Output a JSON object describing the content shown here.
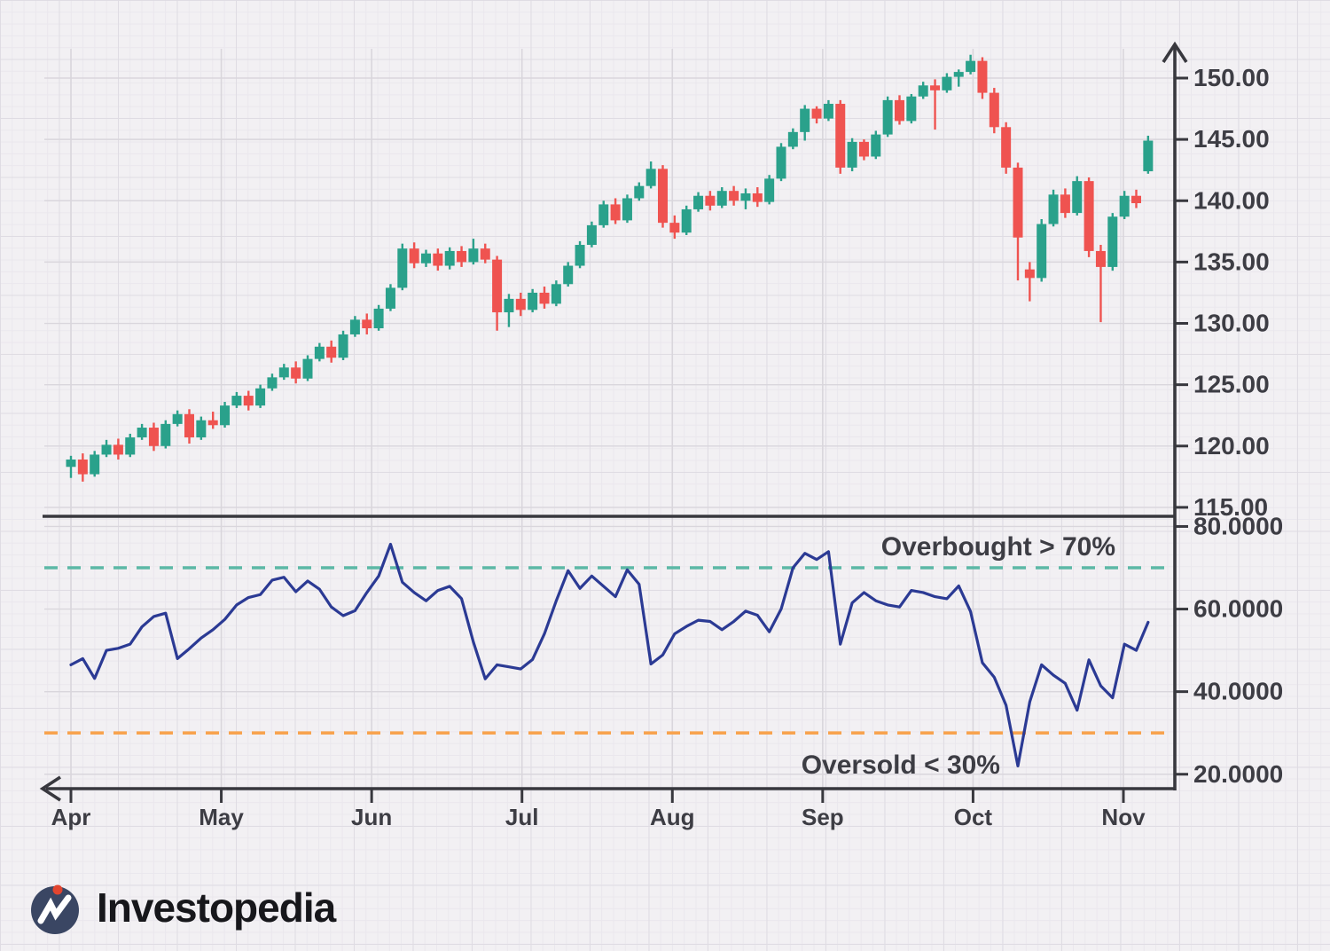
{
  "branding": {
    "logo_text": "Investopedia",
    "logo_circle_color": "#3a4663",
    "logo_dot_color": "#e2452f",
    "logo_mark_color": "#ffffff"
  },
  "chart_data": {
    "type": "candlestick",
    "title": "",
    "description": "Daily price candlesticks (top panel) with RSI oscillator (bottom panel), overbought/oversold bands",
    "x_axis": {
      "tick_labels": [
        "Apr",
        "May",
        "Jun",
        "Jul",
        "Aug",
        "Sep",
        "Oct",
        "Nov"
      ]
    },
    "price_panel": {
      "ylim": [
        113.5,
        152.5
      ],
      "grid": true,
      "up_color": "#2aa18b",
      "down_color": "#ef5350",
      "ticks": [
        {
          "label": "150.00",
          "value": 150
        },
        {
          "label": "145.00",
          "value": 145
        },
        {
          "label": "140.00",
          "value": 140
        },
        {
          "label": "135.00",
          "value": 135
        },
        {
          "label": "130.00",
          "value": 130
        },
        {
          "label": "125.00",
          "value": 125
        },
        {
          "label": "120.00",
          "value": 120
        },
        {
          "label": "115.00",
          "value": 115
        }
      ],
      "candles_ohlc": [
        [
          118.3,
          119.2,
          117.4,
          118.9
        ],
        [
          118.9,
          119.4,
          117.1,
          117.7
        ],
        [
          117.7,
          119.6,
          117.5,
          119.3
        ],
        [
          119.3,
          120.5,
          119.1,
          120.1
        ],
        [
          120.1,
          120.6,
          118.9,
          119.3
        ],
        [
          119.3,
          121.0,
          119.1,
          120.7
        ],
        [
          120.7,
          121.8,
          120.5,
          121.5
        ],
        [
          121.5,
          121.9,
          119.6,
          120.0
        ],
        [
          120.0,
          122.1,
          119.8,
          121.8
        ],
        [
          121.8,
          122.9,
          121.6,
          122.6
        ],
        [
          122.6,
          123.0,
          120.2,
          120.7
        ],
        [
          120.7,
          122.4,
          120.5,
          122.1
        ],
        [
          122.1,
          122.8,
          121.4,
          121.7
        ],
        [
          121.7,
          123.6,
          121.5,
          123.3
        ],
        [
          123.3,
          124.4,
          123.1,
          124.1
        ],
        [
          124.1,
          124.5,
          122.9,
          123.3
        ],
        [
          123.3,
          125.0,
          123.1,
          124.7
        ],
        [
          124.7,
          125.9,
          124.5,
          125.6
        ],
        [
          125.6,
          126.7,
          125.4,
          126.4
        ],
        [
          126.4,
          126.9,
          125.1,
          125.5
        ],
        [
          125.5,
          127.4,
          125.3,
          127.1
        ],
        [
          127.1,
          128.4,
          126.9,
          128.1
        ],
        [
          128.1,
          128.6,
          126.8,
          127.2
        ],
        [
          127.2,
          129.4,
          127.0,
          129.1
        ],
        [
          129.1,
          130.6,
          128.9,
          130.3
        ],
        [
          130.3,
          130.8,
          129.1,
          129.6
        ],
        [
          129.6,
          131.5,
          129.4,
          131.2
        ],
        [
          131.2,
          133.2,
          131.0,
          132.9
        ],
        [
          132.9,
          136.5,
          132.7,
          136.1
        ],
        [
          136.1,
          136.6,
          134.5,
          134.9
        ],
        [
          134.9,
          136.0,
          134.6,
          135.7
        ],
        [
          135.7,
          136.1,
          134.3,
          134.7
        ],
        [
          134.7,
          136.2,
          134.4,
          135.9
        ],
        [
          135.9,
          136.3,
          134.6,
          135.0
        ],
        [
          135.0,
          136.9,
          134.8,
          136.1
        ],
        [
          136.1,
          136.5,
          134.9,
          135.2
        ],
        [
          135.2,
          135.5,
          129.4,
          130.9
        ],
        [
          130.9,
          132.4,
          129.7,
          132.0
        ],
        [
          132.0,
          132.5,
          130.6,
          131.1
        ],
        [
          131.1,
          132.8,
          130.9,
          132.5
        ],
        [
          132.5,
          133.0,
          131.2,
          131.6
        ],
        [
          131.6,
          133.5,
          131.4,
          133.2
        ],
        [
          133.2,
          135.0,
          133.0,
          134.7
        ],
        [
          134.7,
          136.7,
          134.5,
          136.4
        ],
        [
          136.4,
          138.3,
          136.2,
          138.0
        ],
        [
          138.0,
          140.0,
          137.8,
          139.7
        ],
        [
          139.7,
          140.2,
          138.1,
          138.4
        ],
        [
          138.4,
          140.5,
          138.2,
          140.2
        ],
        [
          140.2,
          141.5,
          140.0,
          141.2
        ],
        [
          141.2,
          143.2,
          141.0,
          142.6
        ],
        [
          142.6,
          142.9,
          137.8,
          138.2
        ],
        [
          138.2,
          138.8,
          136.9,
          137.4
        ],
        [
          137.4,
          139.6,
          137.2,
          139.3
        ],
        [
          139.3,
          140.7,
          139.1,
          140.4
        ],
        [
          140.4,
          140.8,
          139.2,
          139.6
        ],
        [
          139.6,
          141.1,
          139.4,
          140.8
        ],
        [
          140.8,
          141.2,
          139.6,
          140.0
        ],
        [
          140.0,
          141.0,
          139.3,
          140.6
        ],
        [
          140.6,
          141.1,
          139.5,
          139.9
        ],
        [
          139.9,
          142.1,
          139.7,
          141.8
        ],
        [
          141.8,
          144.7,
          141.6,
          144.4
        ],
        [
          144.4,
          145.9,
          144.2,
          145.6
        ],
        [
          145.6,
          147.8,
          144.9,
          147.5
        ],
        [
          147.5,
          147.7,
          146.3,
          146.7
        ],
        [
          146.7,
          148.2,
          146.5,
          147.9
        ],
        [
          147.9,
          148.2,
          142.2,
          142.7
        ],
        [
          142.7,
          145.1,
          142.4,
          144.8
        ],
        [
          144.8,
          145.0,
          143.3,
          143.6
        ],
        [
          143.6,
          145.7,
          143.4,
          145.4
        ],
        [
          145.4,
          148.5,
          145.2,
          148.2
        ],
        [
          148.2,
          148.6,
          146.2,
          146.5
        ],
        [
          146.5,
          148.7,
          146.3,
          148.5
        ],
        [
          148.5,
          149.7,
          148.3,
          149.4
        ],
        [
          149.4,
          149.9,
          145.8,
          149.0
        ],
        [
          149.0,
          150.4,
          148.8,
          150.1
        ],
        [
          150.1,
          150.7,
          149.3,
          150.5
        ],
        [
          150.5,
          151.9,
          150.3,
          151.4
        ],
        [
          151.4,
          151.7,
          148.3,
          148.8
        ],
        [
          148.8,
          149.2,
          145.5,
          146.0
        ],
        [
          146.0,
          146.4,
          142.2,
          142.7
        ],
        [
          142.7,
          143.1,
          133.5,
          137.0
        ],
        [
          134.4,
          135.0,
          131.8,
          133.7
        ],
        [
          133.7,
          138.5,
          133.4,
          138.1
        ],
        [
          138.1,
          140.9,
          137.9,
          140.5
        ],
        [
          140.5,
          141.0,
          138.6,
          139.0
        ],
        [
          139.0,
          142.0,
          138.8,
          141.6
        ],
        [
          141.6,
          141.9,
          135.4,
          135.9
        ],
        [
          135.9,
          136.4,
          130.1,
          134.6
        ],
        [
          134.6,
          139.0,
          134.3,
          138.7
        ],
        [
          138.7,
          140.8,
          138.5,
          140.4
        ],
        [
          140.4,
          140.9,
          139.4,
          139.8
        ],
        [
          142.4,
          145.3,
          142.2,
          144.9
        ]
      ]
    },
    "rsi_panel": {
      "ylim": [
        18,
        82
      ],
      "grid": true,
      "line_color": "#2b3a94",
      "ticks": [
        {
          "label": "80.0000",
          "value": 80
        },
        {
          "label": "60.0000",
          "value": 60
        },
        {
          "label": "40.0000",
          "value": 40
        },
        {
          "label": "20.0000",
          "value": 20
        }
      ],
      "overbought": {
        "level": 70,
        "label": "Overbought > 70%",
        "color": "#5cb8a6"
      },
      "oversold": {
        "level": 30,
        "label": "Oversold < 30%",
        "color": "#f8a34e"
      },
      "values": [
        46.5,
        48.0,
        43.2,
        50.0,
        50.5,
        51.5,
        55.7,
        58.2,
        59.0,
        48.0,
        50.4,
        53.0,
        55.0,
        57.5,
        61.0,
        62.8,
        63.5,
        67.0,
        67.7,
        64.2,
        66.8,
        64.8,
        60.5,
        58.4,
        59.6,
        64.0,
        68.0,
        75.7,
        66.5,
        64.0,
        62.0,
        64.5,
        65.5,
        62.5,
        52.0,
        43.1,
        46.5,
        46.0,
        45.5,
        47.8,
        54.0,
        62.0,
        69.3,
        65.0,
        68.0,
        65.5,
        63.0,
        69.5,
        66.0,
        46.7,
        48.9,
        54.0,
        55.8,
        57.3,
        57.0,
        55.0,
        57.0,
        59.5,
        58.5,
        54.5,
        60.0,
        70.0,
        73.5,
        72.0,
        73.9,
        51.5,
        61.5,
        64.0,
        62.0,
        61.0,
        60.5,
        64.5,
        64.0,
        63.0,
        62.5,
        65.6,
        59.4,
        47.0,
        43.5,
        36.7,
        22.0,
        37.5,
        46.5,
        44.0,
        42.0,
        35.5,
        47.7,
        41.4,
        38.5,
        51.5,
        50.0,
        56.8
      ]
    },
    "axis_color": "#38383e"
  }
}
